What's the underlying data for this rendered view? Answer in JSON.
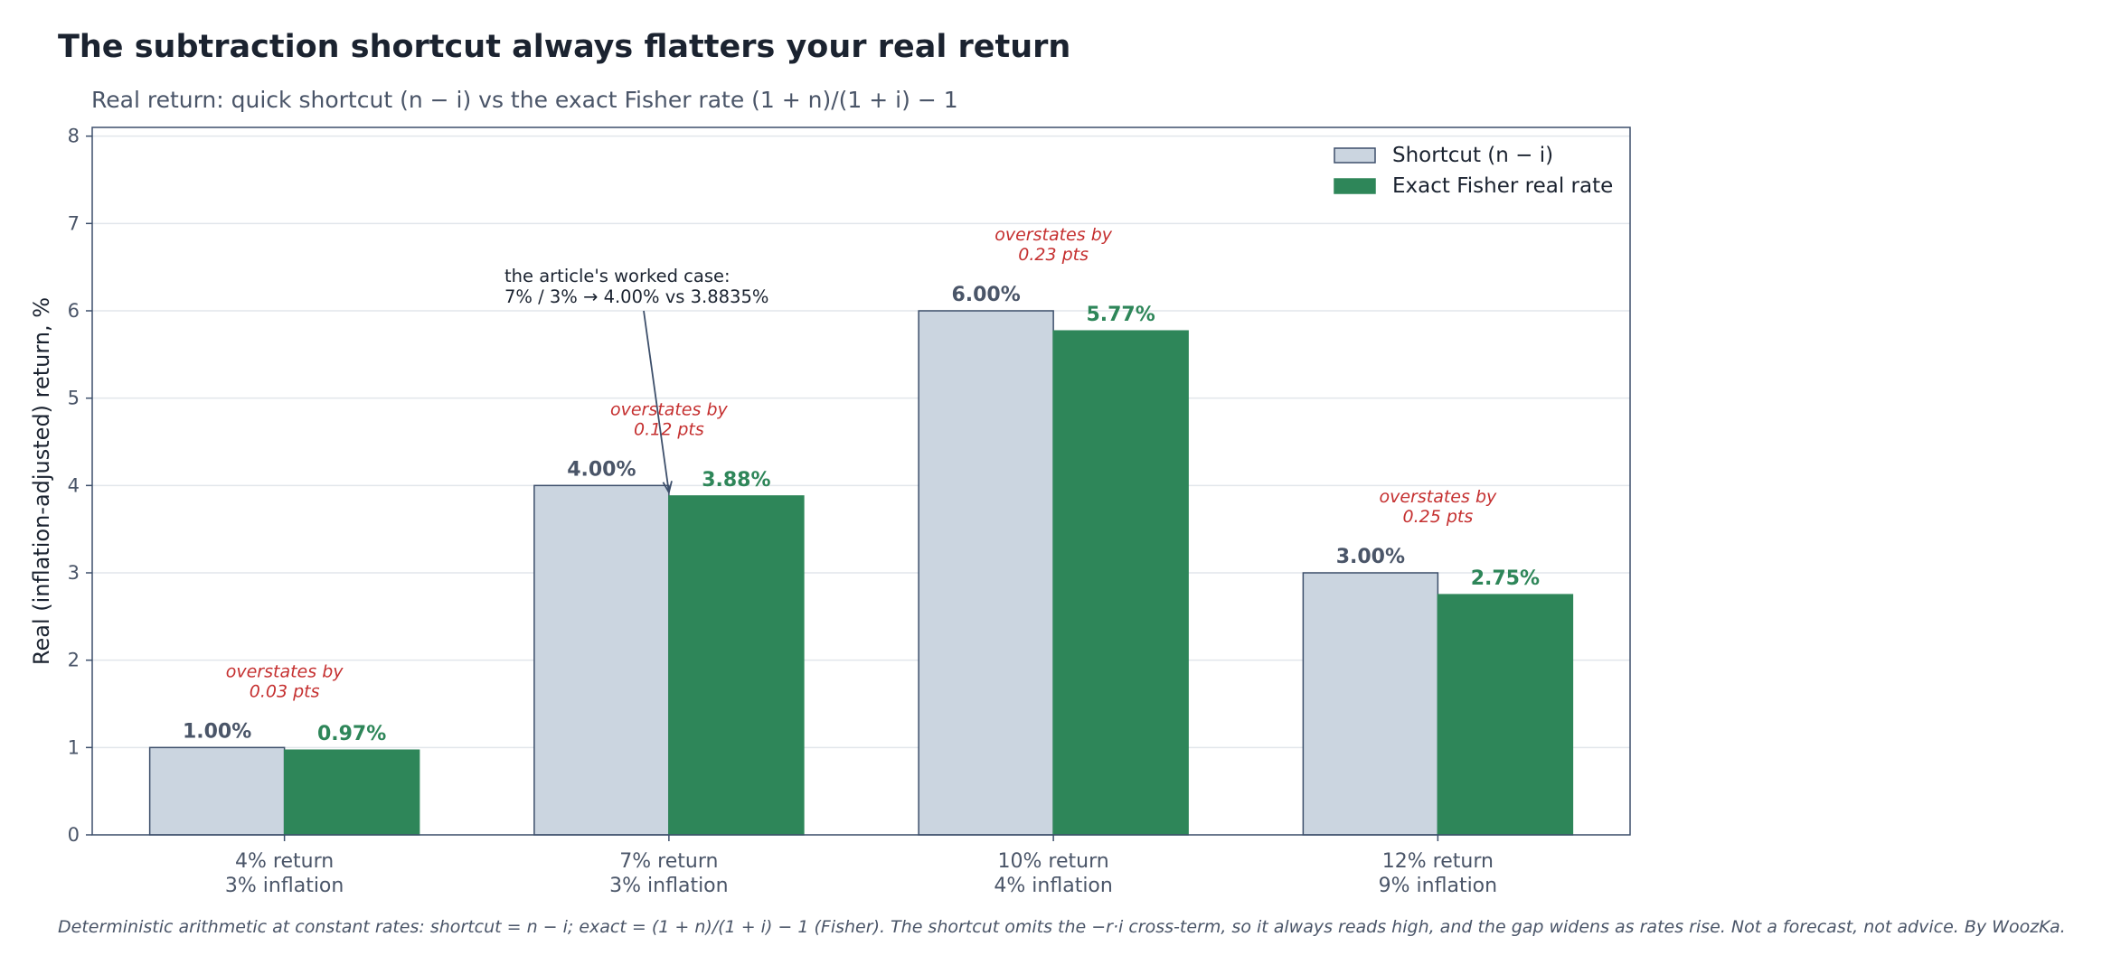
{
  "title": "The subtraction shortcut always flatters your real return",
  "subtitle": "Real return: quick shortcut (n − i) vs the exact Fisher rate  (1 + n)/(1 + i) − 1",
  "footnote": "Deterministic arithmetic at constant rates: shortcut = n − i; exact = (1 + n)/(1 + i) − 1 (Fisher). The shortcut omits the −r·i cross-term, so it always reads high, and the gap widens as rates rise. Not a forecast, not advice. By WoozKa.",
  "chart_data": {
    "type": "bar",
    "ylabel": "Real (inflation-adjusted) return, %",
    "xlabel": "",
    "ylim": [
      0,
      8.1
    ],
    "yticks": [
      "0",
      "1",
      "2",
      "3",
      "4",
      "5",
      "6",
      "7",
      "8"
    ],
    "grid": "horizontal",
    "legend_position": "top-right",
    "categories": [
      [
        "4% return",
        "3% inflation"
      ],
      [
        "7% return",
        "3% inflation"
      ],
      [
        "10% return",
        "4% inflation"
      ],
      [
        "12% return",
        "9% inflation"
      ]
    ],
    "series": [
      {
        "name": "Shortcut  (n − i)",
        "values": [
          1.0,
          4.0,
          6.0,
          3.0
        ],
        "labels": [
          "1.00%",
          "4.00%",
          "6.00%",
          "3.00%"
        ],
        "color": "#cbd5e0",
        "edge": "#3d4f6b"
      },
      {
        "name": "Exact Fisher real rate",
        "values": [
          0.97,
          3.88,
          5.77,
          2.75
        ],
        "labels": [
          "0.97%",
          "3.88%",
          "5.77%",
          "2.75%"
        ],
        "color": "#2e8659",
        "edge": "#2e8659"
      }
    ],
    "gap_annotations": [
      [
        "overstates by",
        "0.03 pts"
      ],
      [
        "overstates by",
        "0.12 pts"
      ],
      [
        "overstates by",
        "0.23 pts"
      ],
      [
        "overstates by",
        "0.25 pts"
      ]
    ],
    "callout": {
      "lines": [
        "the article's worked case:",
        "7% / 3% → 4.00% vs 3.8835%"
      ],
      "target_category": 1,
      "target_value": 3.88
    }
  }
}
